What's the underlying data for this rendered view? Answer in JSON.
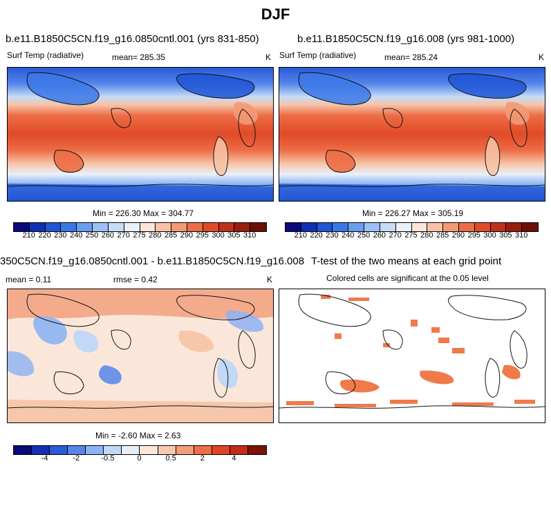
{
  "title": "DJF",
  "panels": {
    "top_left": {
      "title": "b.e11.B1850C5CN.f19_g16.0850cntl.001 (yrs 831-850)",
      "variable": "Surf Temp (radiative)",
      "mean_label": "mean= 285.35",
      "units": "K",
      "stats": "Min = 226.30 Max = 304.77"
    },
    "top_right": {
      "title": "b.e11.B1850C5CN.f19_g16.008 (yrs 981-1000)",
      "variable": "Surf Temp (radiative)",
      "mean_label": "mean= 285.24",
      "units": "K",
      "stats": "Min = 226.27 Max = 305.19"
    },
    "bottom_left": {
      "title": "350C5CN.f19_g16.0850cntl.001 - b.e11.B1850C5CN.f19_g16.008",
      "mean_label": "mean =   0.11",
      "rmse_label": "rmse =   0.42",
      "units": "K",
      "stats": "Min =  -2.60 Max =   2.63"
    },
    "bottom_right": {
      "title": "T-test of the two means at each grid point",
      "subtitle": "Colored cells are significant at the 0.05 level"
    }
  },
  "colorbars": {
    "temp": {
      "labels": [
        "210",
        "220",
        "230",
        "240",
        "250",
        "260",
        "270",
        "275",
        "280",
        "285",
        "290",
        "295",
        "300",
        "305",
        "310"
      ],
      "colors": [
        "#0a0a7a",
        "#0f2fb5",
        "#1f55d6",
        "#3a78e8",
        "#6b9ef0",
        "#9cc0f5",
        "#c6dcf7",
        "#e9f0fa",
        "#fbe6d8",
        "#f7c3a6",
        "#f29a75",
        "#ec6d45",
        "#e14a28",
        "#c3301a",
        "#9b1d10",
        "#6e0e08"
      ]
    },
    "diff": {
      "labels": [
        "-4",
        "-2",
        "-0.5",
        "0",
        "0.5",
        "2",
        "4"
      ],
      "colors": [
        "#0a0a7a",
        "#1530b0",
        "#2a5ad8",
        "#5585ea",
        "#8db2f3",
        "#c1d8f7",
        "#e6eff9",
        "#fbe7da",
        "#f7c7ab",
        "#f29c78",
        "#ec6e48",
        "#df4425",
        "#c22c18",
        "#7e1208"
      ]
    }
  },
  "colors": {
    "warm": "#e8552f",
    "cold": "#2f62e2",
    "sig": "#f07a4a",
    "coast": "#111111"
  }
}
